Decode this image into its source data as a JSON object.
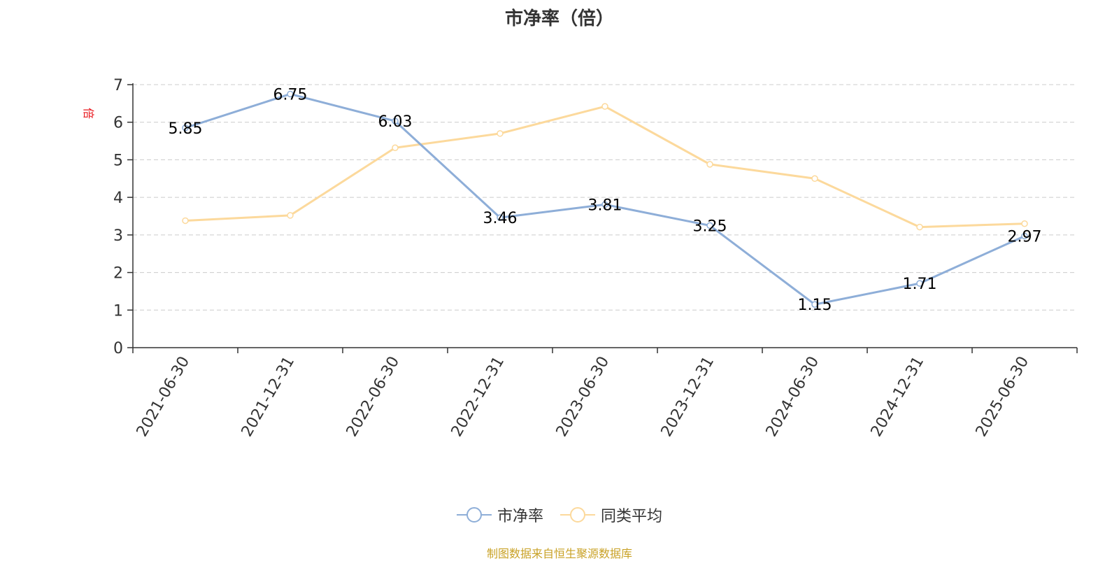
{
  "title": "市净率（倍）",
  "y_unit": "倍",
  "source_note": "制图数据来自恒生聚源数据库",
  "colors": {
    "series1": "#8eaed8",
    "series2": "#fcd99c",
    "grid": "#cccccc",
    "axis": "#333333",
    "unit": "#e8141a",
    "source": "#c9a227"
  },
  "legend": [
    {
      "label": "市净率",
      "color": "#8eaed8"
    },
    {
      "label": "同类平均",
      "color": "#fcd99c"
    }
  ],
  "chart_data": {
    "type": "line",
    "title": "市净率（倍）",
    "ylabel": "倍",
    "categories": [
      "2021-06-30",
      "2021-12-31",
      "2022-06-30",
      "2022-12-31",
      "2023-06-30",
      "2023-12-31",
      "2024-06-30",
      "2024-12-31",
      "2025-06-30"
    ],
    "ylim": [
      0,
      7
    ],
    "yticks": [
      0,
      1,
      2,
      3,
      4,
      5,
      6,
      7
    ],
    "grid": true,
    "legend_position": "bottom",
    "series": [
      {
        "name": "市净率",
        "values": [
          5.85,
          6.75,
          6.03,
          3.46,
          3.81,
          3.25,
          1.15,
          1.71,
          2.97
        ],
        "data_labels": [
          "5.85",
          "6.75",
          "6.03",
          "3.46",
          "3.81",
          "3.25",
          "1.15",
          "1.71",
          "2.97"
        ]
      },
      {
        "name": "同类平均",
        "values": [
          3.38,
          3.52,
          5.32,
          5.7,
          6.42,
          4.88,
          4.5,
          3.21,
          3.3
        ]
      }
    ]
  }
}
